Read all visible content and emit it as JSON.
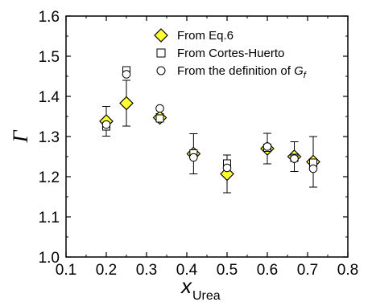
{
  "chart_data": {
    "type": "scatter",
    "title": "",
    "xlabel": "x",
    "xlabel_sub": "Urea",
    "ylabel": "Γ",
    "xlim": [
      0.1,
      0.8
    ],
    "ylim": [
      1.0,
      1.6
    ],
    "x_ticks": [
      "0.1",
      "0.2",
      "0.3",
      "0.4",
      "0.5",
      "0.6",
      "0.7",
      "0.8"
    ],
    "y_ticks": [
      "1.0",
      "1.1",
      "1.2",
      "1.3",
      "1.4",
      "1.5",
      "1.6"
    ],
    "grid": false,
    "legend_position": "top-right",
    "series": [
      {
        "name": "From Eq.6",
        "marker": "diamond",
        "color": "#ffff33",
        "x": [
          0.2,
          0.25,
          0.333,
          0.4167,
          0.5,
          0.6,
          0.667,
          0.714
        ],
        "y": [
          1.338,
          1.383,
          1.347,
          1.257,
          1.207,
          1.27,
          1.25,
          1.237
        ],
        "err": [
          0.037,
          0.057,
          0.01,
          0.05,
          0.047,
          0.038,
          0.037,
          0.063
        ]
      },
      {
        "name": "From Cortes-Huerto",
        "marker": "square",
        "color": "#ffffff",
        "x": [
          0.2,
          0.25,
          0.333,
          0.4167,
          0.5,
          0.6,
          0.667,
          0.714
        ],
        "y": [
          1.325,
          1.465,
          1.345,
          1.258,
          1.233,
          1.272,
          1.247,
          1.235
        ]
      },
      {
        "name_prefix": "From the definition of ",
        "name_symbol": "G",
        "name_sub": "f",
        "marker": "circle",
        "color": "#ffffff",
        "x": [
          0.2,
          0.25,
          0.333,
          0.4167,
          0.5,
          0.6,
          0.667,
          0.714
        ],
        "y": [
          1.33,
          1.455,
          1.37,
          1.248,
          1.222,
          1.275,
          1.245,
          1.22
        ]
      }
    ]
  }
}
